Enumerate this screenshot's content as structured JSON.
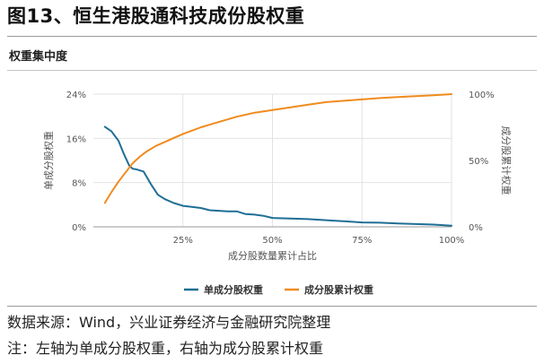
{
  "figure_title": "图13、恒生港股通科技成份股权重",
  "subtitle": "权重集中度",
  "source_note": "数据来源：Wind，兴业证券经济与金融研究院整理",
  "axis_note": "注：左轴为单成分股权重，右轴为成分股累计权重",
  "colors": {
    "left_series": "#1f6e96",
    "right_series": "#f08b1e",
    "grid": "#e2e2e2",
    "axis_text": "#555555"
  },
  "chart_data": {
    "type": "line",
    "xlabel": "成分股数量累计占比",
    "ylabel_left": "单成分股权重",
    "ylabel_right": "成分股累计权重",
    "x_ticks": [
      "25%",
      "50%",
      "75%",
      "100%"
    ],
    "y_left_ticks": [
      "0%",
      "8%",
      "16%",
      "24%"
    ],
    "y_right_ticks": [
      "0%",
      "50%",
      "100%"
    ],
    "xlim": [
      0,
      100
    ],
    "ylim_left": [
      0,
      24
    ],
    "ylim_right": [
      0,
      100
    ],
    "grid": true,
    "legend_position": "bottom",
    "series": [
      {
        "name": "单成分股权重",
        "axis": "left",
        "color": "#1f6e96",
        "x": [
          3.2,
          5,
          7,
          8.5,
          10,
          11,
          12,
          14,
          16,
          18,
          20,
          22.5,
          25,
          27.5,
          30,
          32.5,
          35,
          37.5,
          40,
          42.5,
          45,
          47.5,
          50,
          55,
          60,
          65,
          70,
          75,
          80,
          85,
          90,
          95,
          100
        ],
        "y": [
          18.1,
          17.3,
          15.6,
          13.2,
          11.1,
          10.5,
          10.4,
          10.0,
          7.8,
          5.8,
          5.0,
          4.3,
          3.8,
          3.6,
          3.4,
          3.0,
          2.9,
          2.8,
          2.8,
          2.3,
          2.2,
          2.0,
          1.6,
          1.5,
          1.4,
          1.2,
          1.0,
          0.8,
          0.75,
          0.6,
          0.5,
          0.4,
          0.2
        ]
      },
      {
        "name": "成分股累计权重",
        "axis": "right",
        "color": "#f08b1e",
        "x": [
          3.2,
          5,
          7,
          9,
          11,
          13,
          15,
          17.5,
          20,
          22.5,
          25,
          30,
          35,
          40,
          45,
          50,
          55,
          60,
          65,
          70,
          75,
          80,
          85,
          90,
          95,
          100
        ],
        "y": [
          18,
          26,
          34,
          41,
          48,
          53,
          57,
          61,
          64,
          67,
          70,
          75,
          79,
          83,
          86,
          88,
          90,
          92,
          94,
          95,
          96,
          97,
          97.8,
          98.5,
          99.2,
          100
        ]
      }
    ]
  }
}
